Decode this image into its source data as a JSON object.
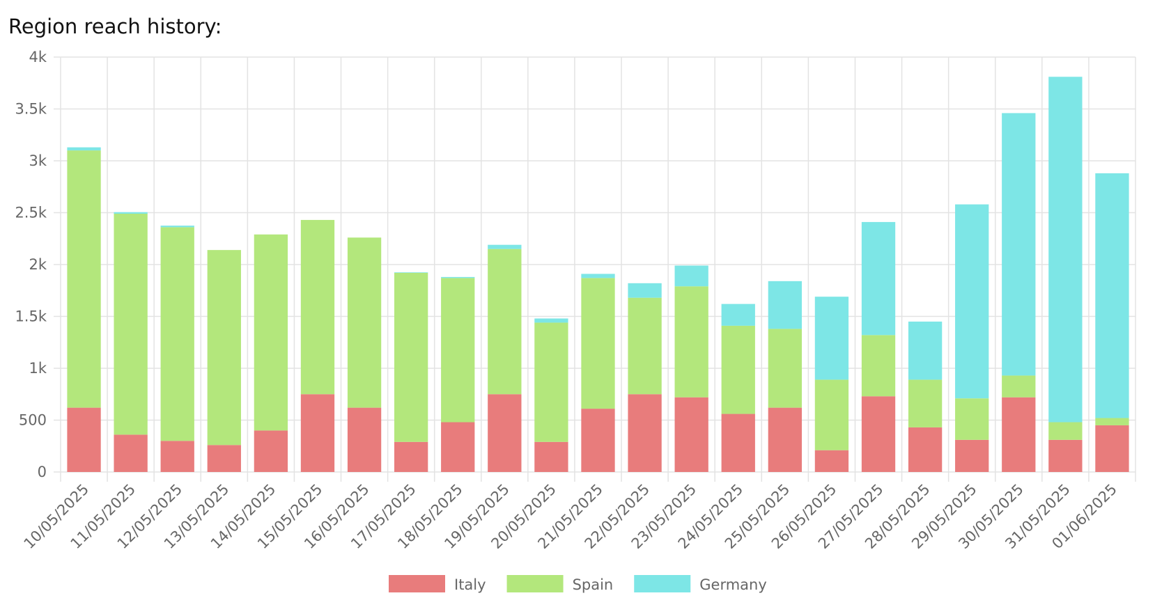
{
  "chart_data": {
    "type": "bar",
    "stacked": true,
    "title": "Region reach history:",
    "categories": [
      "10/05/2025",
      "11/05/2025",
      "12/05/2025",
      "13/05/2025",
      "14/05/2025",
      "15/05/2025",
      "16/05/2025",
      "17/05/2025",
      "18/05/2025",
      "19/05/2025",
      "20/05/2025",
      "21/05/2025",
      "22/05/2025",
      "23/05/2025",
      "24/05/2025",
      "25/05/2025",
      "26/05/2025",
      "27/05/2025",
      "28/05/2025",
      "29/05/2025",
      "30/05/2025",
      "31/05/2025",
      "01/06/2025"
    ],
    "series": [
      {
        "name": "Italy",
        "color": "#e87c7c",
        "values": [
          620,
          360,
          300,
          260,
          400,
          750,
          620,
          290,
          480,
          750,
          290,
          610,
          750,
          720,
          560,
          620,
          210,
          730,
          430,
          310,
          720,
          310,
          450
        ]
      },
      {
        "name": "Spain",
        "color": "#b3e77c",
        "values": [
          2480,
          2130,
          2060,
          1880,
          1890,
          1680,
          1640,
          1630,
          1390,
          1400,
          1150,
          1260,
          930,
          1070,
          850,
          760,
          680,
          590,
          460,
          400,
          210,
          170,
          70
        ]
      },
      {
        "name": "Germany",
        "color": "#7de6e6",
        "values": [
          30,
          15,
          15,
          0,
          0,
          0,
          0,
          5,
          10,
          40,
          40,
          40,
          140,
          200,
          210,
          460,
          800,
          1090,
          560,
          1870,
          2530,
          3330,
          2360
        ]
      }
    ],
    "ylim": [
      0,
      4000
    ],
    "yticks": [
      0,
      500,
      {
        "value": 1000,
        "label": "1k"
      },
      {
        "value": 1500,
        "label": "1.5k"
      },
      {
        "value": 2000,
        "label": "2k"
      },
      {
        "value": 2500,
        "label": "2.5k"
      },
      {
        "value": 3000,
        "label": "3k"
      },
      {
        "value": 3500,
        "label": "3.5k"
      },
      {
        "value": 4000,
        "label": "4k"
      }
    ],
    "grid": true,
    "legend": "bottom"
  }
}
